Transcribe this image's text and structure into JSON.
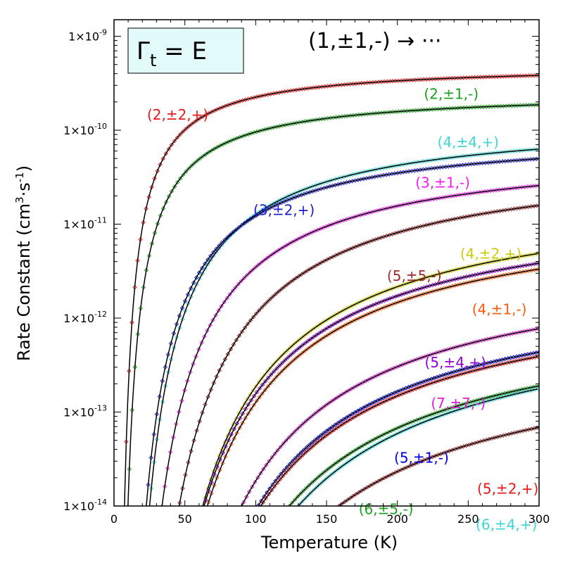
{
  "chart_data": {
    "type": "line",
    "title": "(1,±1,-) → ···",
    "symmetry_label": {
      "main": "Γ",
      "sub": "t",
      "rest": " = E"
    },
    "xlabel": "Temperature (K)",
    "ylabel": {
      "prefix": "Rate Constant (cm",
      "sup1": "3",
      "mid": "·s",
      "sup2": "-1",
      "suffix": ")"
    },
    "xlim": [
      0,
      300
    ],
    "ylim": [
      1e-14,
      1.5e-09
    ],
    "yscale": "log",
    "xticks": [
      0,
      50,
      100,
      150,
      200,
      250,
      300
    ],
    "yticks": [
      {
        "value": 1e-14,
        "base": "1×10",
        "exp": "-14"
      },
      {
        "value": 1e-13,
        "base": "1×10",
        "exp": "-13"
      },
      {
        "value": 1e-12,
        "base": "1×10",
        "exp": "-12"
      },
      {
        "value": 1e-11,
        "base": "1×10",
        "exp": "-11"
      },
      {
        "value": 1e-10,
        "base": "1×10",
        "exp": "-10"
      },
      {
        "value": 1e-09,
        "base": "1×10",
        "exp": "-9"
      }
    ],
    "series": [
      {
        "name": "(2,±2,+)",
        "color": "#e8191a",
        "k_inf": 5e-10,
        "activation_K": 80,
        "label_at": [
          45,
          1.3e-10
        ]
      },
      {
        "name": "(2,±1,-)",
        "color": "#1ca01c",
        "k_inf": 2.6e-10,
        "activation_K": 100,
        "label_at": [
          238,
          2.15e-10
        ]
      },
      {
        "name": "(4,±4,+)",
        "color": "#3fd5d5",
        "k_inf": 1.4e-10,
        "activation_K": 240,
        "label_at": [
          250,
          6.6e-11
        ]
      },
      {
        "name": "(3,±2,+)",
        "color": "#1f1fd1",
        "k_inf": 1e-10,
        "activation_K": 210,
        "label_at": [
          120,
          1.25e-11
        ]
      },
      {
        "name": "(3,±1,-)",
        "color": "#f020f0",
        "k_inf": 7e-11,
        "activation_K": 300,
        "label_at": [
          232,
          2.45e-11
        ]
      },
      {
        "name": "(5,±5,-)",
        "color": "#9b2b2b",
        "k_inf": 6e-11,
        "activation_K": 400,
        "label_at": [
          212,
          2.5e-12
        ]
      },
      {
        "name": "(4,±2,+)",
        "color": "#cccc10",
        "k_inf": 2.5e-11,
        "activation_K": 490,
        "label_at": [
          266,
          4.3e-12
        ]
      },
      {
        "name": "(4,±1,-)",
        "color": "#ff5a10",
        "k_inf": 1.7e-11,
        "activation_K": 490,
        "label_at": [
          272,
          1.1e-12
        ]
      },
      {
        "name": "(5,±4,+)",
        "color": "#9000d0",
        "k_inf": 1.9e-11,
        "activation_K": 480,
        "label_at": [
          241,
          3e-13
        ]
      },
      {
        "name": "(7,±7,-)",
        "color": "#e020d0",
        "k_inf": 5e-12,
        "activation_K": 560,
        "label_at": [
          243,
          1.1e-13
        ]
      },
      {
        "name": "(5,±1,-)",
        "color": "#0000e0",
        "k_inf": 3e-12,
        "activation_K": 580,
        "label_at": [
          217,
          2.9e-14
        ]
      },
      {
        "name": "(5,±2,+)",
        "color": "#e8191a",
        "k_inf": 2.7e-12,
        "activation_K": 580,
        "label_at": [
          278,
          1.35e-14
        ]
      },
      {
        "name": "(6,±5,-)",
        "color": "#1ca01c",
        "k_inf": 1.5e-12,
        "activation_K": 620,
        "label_at": [
          192,
          8.2e-15
        ]
      },
      {
        "name": "(6,±4,+)",
        "color": "#3fd5d5",
        "k_inf": 1.6e-12,
        "activation_K": 660,
        "label_at": [
          277,
          5.6e-15
        ]
      },
      {
        "name": "",
        "color": "#9b2b2b",
        "k_inf": 6e-13,
        "activation_K": 650,
        "label_at": null
      }
    ]
  }
}
